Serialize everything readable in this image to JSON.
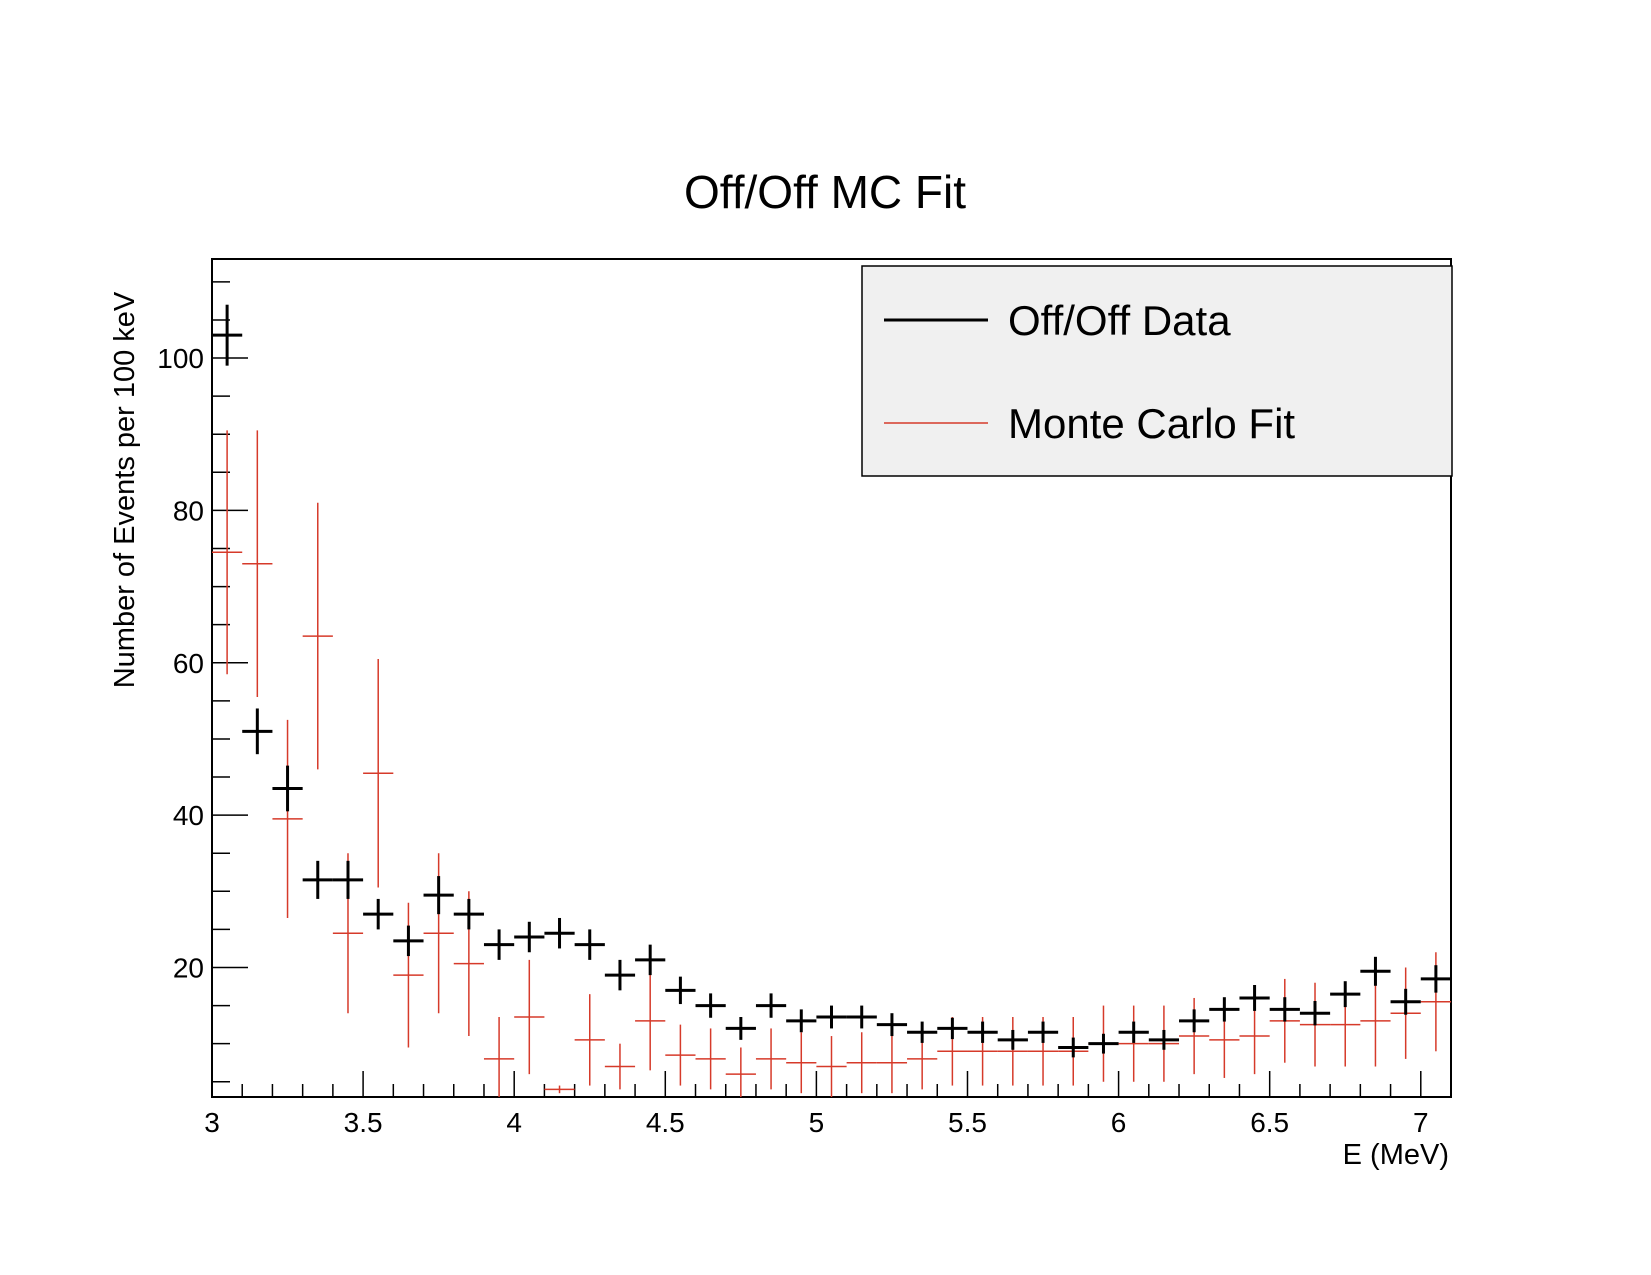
{
  "chart_data": {
    "type": "scatter",
    "title": "Off/Off MC Fit",
    "xlabel": "E (MeV)",
    "ylabel": "Number of Events per 100  keV",
    "xlim": [
      3.0,
      7.1
    ],
    "ylim": [
      3.0,
      113.0
    ],
    "x_ticks": [
      3,
      3.5,
      4,
      4.5,
      5,
      5.5,
      6,
      6.5,
      7
    ],
    "y_ticks": [
      20,
      40,
      60,
      80,
      100
    ],
    "bin_width": 0.1,
    "grid": false,
    "legend_position": "top-right",
    "series": [
      {
        "name": "Off/Off Data",
        "color": "#000000",
        "x": [
          3.05,
          3.15,
          3.25,
          3.35,
          3.45,
          3.55,
          3.65,
          3.75,
          3.85,
          3.95,
          4.05,
          4.15,
          4.25,
          4.35,
          4.45,
          4.55,
          4.65,
          4.75,
          4.85,
          4.95,
          5.05,
          5.15,
          5.25,
          5.35,
          5.45,
          5.55,
          5.65,
          5.75,
          5.85,
          5.95,
          6.05,
          6.15,
          6.25,
          6.35,
          6.45,
          6.55,
          6.65,
          6.75,
          6.85,
          6.95,
          7.05
        ],
        "y": [
          103,
          51,
          43.5,
          31.5,
          31.5,
          27,
          23.5,
          29.5,
          27,
          23,
          24,
          24.5,
          23,
          19,
          21,
          17,
          15,
          12,
          15,
          13,
          13.5,
          13.5,
          12.5,
          11.5,
          12,
          11.5,
          10.5,
          11.5,
          9.5,
          10,
          11.5,
          10.5,
          13,
          14.5,
          16,
          14.5,
          14,
          16.5,
          19.5,
          15.5,
          18.5
        ],
        "err": [
          4,
          3,
          3,
          2.5,
          2.5,
          2,
          2,
          2.5,
          2,
          2,
          2,
          2,
          2,
          2,
          2,
          1.8,
          1.6,
          1.5,
          1.6,
          1.5,
          1.5,
          1.5,
          1.5,
          1.4,
          1.4,
          1.4,
          1.3,
          1.4,
          1.3,
          1.3,
          1.4,
          1.3,
          1.5,
          1.6,
          1.7,
          1.6,
          1.6,
          1.7,
          1.9,
          1.7,
          1.8
        ]
      },
      {
        "name": "Monte Carlo Fit",
        "color": "#d63a2a",
        "x": [
          3.05,
          3.15,
          3.25,
          3.35,
          3.45,
          3.55,
          3.65,
          3.75,
          3.85,
          3.95,
          4.05,
          4.15,
          4.25,
          4.35,
          4.45,
          4.55,
          4.65,
          4.75,
          4.85,
          4.95,
          5.05,
          5.15,
          5.25,
          5.35,
          5.45,
          5.55,
          5.65,
          5.75,
          5.85,
          5.95,
          6.05,
          6.15,
          6.25,
          6.35,
          6.45,
          6.55,
          6.65,
          6.75,
          6.85,
          6.95,
          7.05
        ],
        "y": [
          74.5,
          73,
          39.5,
          63.5,
          24.5,
          45.5,
          19,
          24.5,
          20.5,
          8,
          13.5,
          4,
          10.5,
          7,
          13,
          8.5,
          8,
          6,
          8,
          7.5,
          7,
          7.5,
          7.5,
          8,
          9,
          9,
          9,
          9,
          9,
          10,
          10,
          10,
          11,
          10.5,
          11,
          13,
          12.5,
          12.5,
          13,
          14,
          15.5
        ],
        "err": [
          16,
          17.5,
          13,
          17.5,
          10.5,
          15,
          9.5,
          10.5,
          9.5,
          5.5,
          7.5,
          0.5,
          6,
          3,
          6.5,
          4,
          4,
          3.5,
          4,
          4,
          4,
          4,
          4,
          4,
          4.5,
          4.5,
          4.5,
          4.5,
          4.5,
          5,
          5,
          5,
          5,
          5,
          5,
          5.5,
          5.5,
          5.5,
          6,
          6,
          6.5
        ]
      }
    ]
  }
}
